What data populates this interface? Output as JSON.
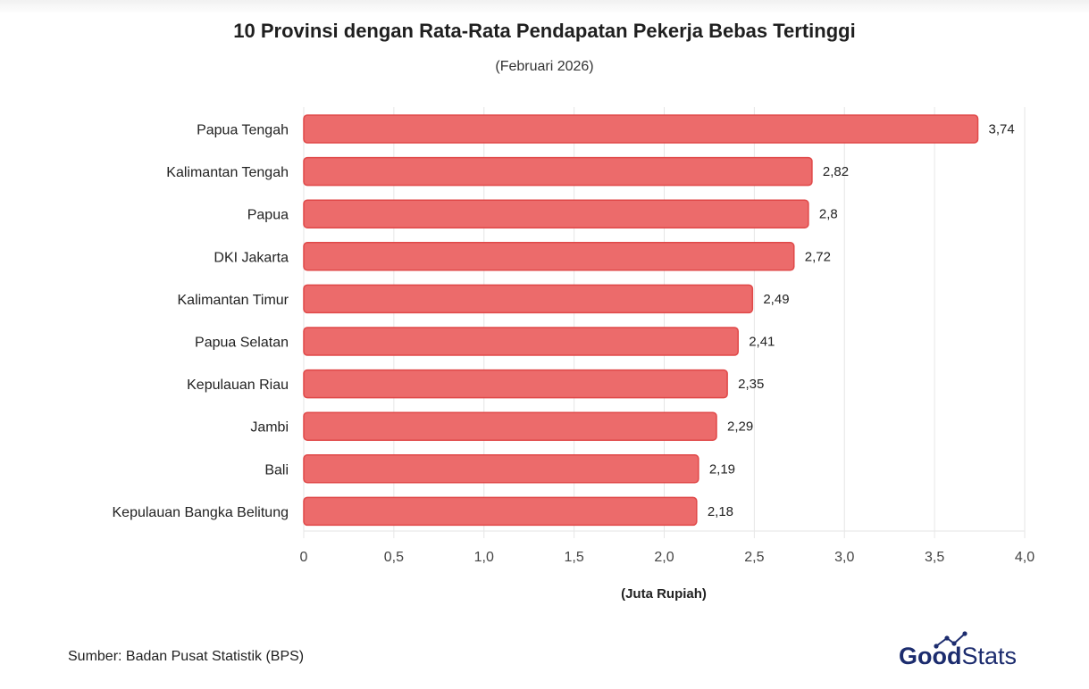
{
  "header": {
    "title": "10 Provinsi dengan Rata-Rata Pendapatan Pekerja Bebas Tertinggi",
    "subtitle": "(Februari 2026)"
  },
  "footer": {
    "source": "Sumber: Badan Pusat Statistik (BPS)",
    "brand_part1": "Good",
    "brand_part2": "Stats"
  },
  "colors": {
    "bar_fill": "#ec6b6b",
    "bar_stroke": "#e04848",
    "grid": "#e6e6e6",
    "brand_blue": "#1c2c6e"
  },
  "chart_data": {
    "type": "bar",
    "orientation": "horizontal",
    "categories": [
      "Papua Tengah",
      "Kalimantan Tengah",
      "Papua",
      "DKI Jakarta",
      "Kalimantan Timur",
      "Papua Selatan",
      "Kepulauan Riau",
      "Jambi",
      "Bali",
      "Kepulauan Bangka Belitung"
    ],
    "values": [
      3.74,
      2.82,
      2.8,
      2.72,
      2.49,
      2.41,
      2.35,
      2.29,
      2.19,
      2.18
    ],
    "value_labels": [
      "3,74",
      "2,82",
      "2,8",
      "2,72",
      "2,49",
      "2,41",
      "2,35",
      "2,29",
      "2,19",
      "2,18"
    ],
    "title": "10 Provinsi dengan Rata-Rata Pendapatan Pekerja Bebas Tertinggi",
    "subtitle": "(Februari 2026)",
    "xlabel": "(Juta Rupiah)",
    "ylabel": "",
    "xlim": [
      0,
      4.0
    ],
    "x_ticks": [
      0,
      0.5,
      1.0,
      1.5,
      2.0,
      2.5,
      3.0,
      3.5,
      4.0
    ],
    "x_tick_labels": [
      "0",
      "0,5",
      "1,0",
      "1,5",
      "2,0",
      "2,5",
      "3,0",
      "3,5",
      "4,0"
    ],
    "grid": true,
    "legend": "none"
  }
}
